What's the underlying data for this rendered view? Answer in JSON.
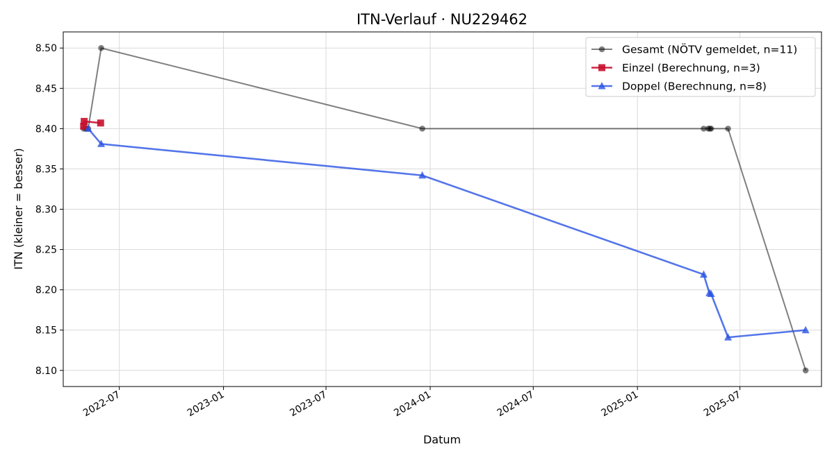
{
  "chart_data": {
    "type": "line",
    "title": "ITN-Verlauf · NU229462",
    "xlabel": "Datum",
    "ylabel": "ITN  (kleiner = besser)",
    "x_type": "date",
    "xlim": [
      "2022-03-24",
      "2025-11-22"
    ],
    "ylim": [
      8.08,
      8.52
    ],
    "grid": true,
    "legend_position": "top-right",
    "x_ticks": [
      "2022-07",
      "2023-01",
      "2023-07",
      "2024-01",
      "2024-07",
      "2025-01",
      "2025-07"
    ],
    "y_ticks": [
      "8.10",
      "8.15",
      "8.20",
      "8.25",
      "8.30",
      "8.35",
      "8.40",
      "8.45",
      "8.50"
    ],
    "series": [
      {
        "name": "Gesamt (NÖTV gemeldet, n=11)",
        "color": "#000000",
        "opacity": 0.5,
        "marker": "circle",
        "points": [
          {
            "x": "2022-04-29",
            "y": 8.4
          },
          {
            "x": "2022-05-03",
            "y": 8.4
          },
          {
            "x": "2022-05-07",
            "y": 8.4
          },
          {
            "x": "2022-05-30",
            "y": 8.5
          },
          {
            "x": "2023-12-18",
            "y": 8.4
          },
          {
            "x": "2025-04-28",
            "y": 8.4
          },
          {
            "x": "2025-05-06",
            "y": 8.4
          },
          {
            "x": "2025-05-09",
            "y": 8.4
          },
          {
            "x": "2025-05-11",
            "y": 8.4
          },
          {
            "x": "2025-06-10",
            "y": 8.4
          },
          {
            "x": "2025-10-25",
            "y": 8.1
          }
        ]
      },
      {
        "name": "Einzel (Berechnung, n=3)",
        "color": "#c8102e",
        "opacity": 0.9,
        "marker": "square",
        "points": [
          {
            "x": "2022-04-29",
            "y": 8.403
          },
          {
            "x": "2022-04-30",
            "y": 8.409
          },
          {
            "x": "2022-05-29",
            "y": 8.407
          }
        ]
      },
      {
        "name": "Doppel (Berechnung, n=8)",
        "color": "#2952e3",
        "opacity": 0.8,
        "marker": "triangle",
        "points": [
          {
            "x": "2022-05-07",
            "y": 8.4
          },
          {
            "x": "2022-05-30",
            "y": 8.381
          },
          {
            "x": "2023-12-18",
            "y": 8.342
          },
          {
            "x": "2025-04-28",
            "y": 8.219
          },
          {
            "x": "2025-05-08",
            "y": 8.196
          },
          {
            "x": "2025-05-11",
            "y": 8.195
          },
          {
            "x": "2025-06-10",
            "y": 8.141
          },
          {
            "x": "2025-10-25",
            "y": 8.15
          }
        ]
      }
    ]
  }
}
